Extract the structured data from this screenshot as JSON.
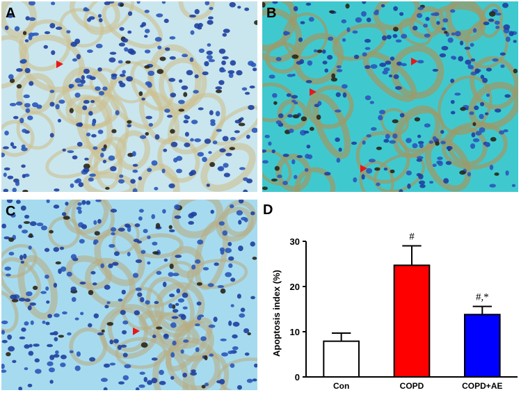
{
  "panels": [
    {
      "label": "A",
      "tint": "#c9e6ee",
      "tissue": "#cdbf8f",
      "marker_color": "#e8161b"
    },
    {
      "label": "B",
      "tint": "#3fc9cf",
      "tissue": "#9c9a6a",
      "marker_color": "#e8161b"
    },
    {
      "label": "C",
      "tint": "#a6dbef",
      "tissue": "#b7ad86",
      "marker_color": "#e8161b"
    }
  ],
  "chart_label": "D",
  "chart_data": {
    "type": "bar",
    "categories": [
      "Con",
      "COPD",
      "COPD+AE"
    ],
    "series": [
      {
        "values": [
          7.9,
          24.7,
          13.8
        ],
        "errors": [
          1.8,
          4.3,
          1.8
        ]
      }
    ],
    "colors": [
      "#ffffff",
      "#ff0000",
      "#0000ff"
    ],
    "annotations": [
      "",
      "#",
      "#,*"
    ],
    "ylabel": "Apoptosis index (%)",
    "ylim": [
      0,
      30
    ],
    "yticks": [
      0,
      10,
      20,
      30
    ],
    "grid": false
  }
}
